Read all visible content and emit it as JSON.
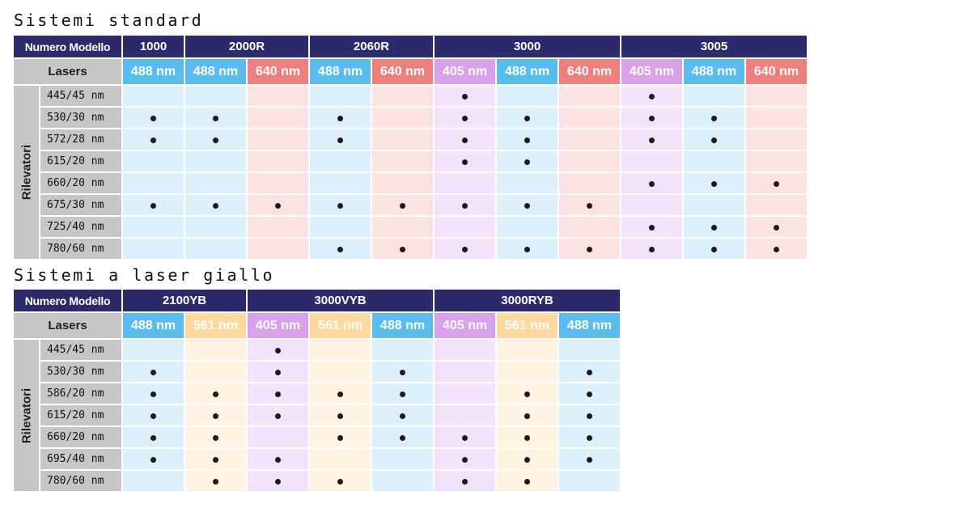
{
  "tables": [
    {
      "title": "Sistemi standard",
      "model_header": "Numero Modello",
      "lasers_label": "Lasers",
      "detectors_label": "Rilevatori",
      "models": [
        {
          "name": "1000",
          "lasers": [
            {
              "wavelength": "488 nm",
              "color": "blue"
            }
          ]
        },
        {
          "name": "2000R",
          "lasers": [
            {
              "wavelength": "488 nm",
              "color": "blue"
            },
            {
              "wavelength": "640 nm",
              "color": "red"
            }
          ]
        },
        {
          "name": "2060R",
          "lasers": [
            {
              "wavelength": "488 nm",
              "color": "blue"
            },
            {
              "wavelength": "640 nm",
              "color": "red"
            }
          ]
        },
        {
          "name": "3000",
          "lasers": [
            {
              "wavelength": "405 nm",
              "color": "violet"
            },
            {
              "wavelength": "488 nm",
              "color": "blue"
            },
            {
              "wavelength": "640 nm",
              "color": "red"
            }
          ]
        },
        {
          "name": "3005",
          "lasers": [
            {
              "wavelength": "405 nm",
              "color": "violet"
            },
            {
              "wavelength": "488 nm",
              "color": "blue"
            },
            {
              "wavelength": "640 nm",
              "color": "red"
            }
          ]
        }
      ],
      "rows": [
        {
          "detector": "445/45 nm",
          "marks": [
            0,
            0,
            0,
            0,
            0,
            1,
            0,
            0,
            1,
            0,
            0
          ]
        },
        {
          "detector": "530/30 nm",
          "marks": [
            1,
            1,
            0,
            1,
            0,
            1,
            1,
            0,
            1,
            1,
            0
          ]
        },
        {
          "detector": "572/28 nm",
          "marks": [
            1,
            1,
            0,
            1,
            0,
            1,
            1,
            0,
            1,
            1,
            0
          ]
        },
        {
          "detector": "615/20 nm",
          "marks": [
            0,
            0,
            0,
            0,
            0,
            1,
            1,
            0,
            0,
            0,
            0
          ]
        },
        {
          "detector": "660/20 nm",
          "marks": [
            0,
            0,
            0,
            0,
            0,
            0,
            0,
            0,
            1,
            1,
            1
          ]
        },
        {
          "detector": "675/30 nm",
          "marks": [
            1,
            1,
            1,
            1,
            1,
            1,
            1,
            1,
            0,
            0,
            0
          ]
        },
        {
          "detector": "725/40 nm",
          "marks": [
            0,
            0,
            0,
            0,
            0,
            0,
            0,
            0,
            1,
            1,
            1
          ]
        },
        {
          "detector": "780/60 nm",
          "marks": [
            0,
            0,
            0,
            1,
            1,
            1,
            1,
            1,
            1,
            1,
            1
          ]
        }
      ]
    },
    {
      "title": "Sistemi a laser giallo",
      "model_header": "Numero Modello",
      "lasers_label": "Lasers",
      "detectors_label": "Rilevatori",
      "models": [
        {
          "name": "2100YB",
          "lasers": [
            {
              "wavelength": "488 nm",
              "color": "blue"
            },
            {
              "wavelength": "561 nm",
              "color": "yellow"
            }
          ]
        },
        {
          "name": "3000VYB",
          "lasers": [
            {
              "wavelength": "405 nm",
              "color": "violet"
            },
            {
              "wavelength": "561 nm",
              "color": "yellow"
            },
            {
              "wavelength": "488 nm",
              "color": "blue"
            }
          ]
        },
        {
          "name": "3000RYB",
          "lasers": [
            {
              "wavelength": "405 nm",
              "color": "violet"
            },
            {
              "wavelength": "561 nm",
              "color": "yellow"
            },
            {
              "wavelength": "488 nm",
              "color": "blue"
            }
          ]
        }
      ],
      "rows": [
        {
          "detector": "445/45 nm",
          "marks": [
            0,
            0,
            1,
            0,
            0,
            0,
            0,
            0
          ]
        },
        {
          "detector": "530/30 nm",
          "marks": [
            1,
            0,
            1,
            0,
            1,
            0,
            0,
            1
          ]
        },
        {
          "detector": "586/20 nm",
          "marks": [
            1,
            1,
            1,
            1,
            1,
            0,
            1,
            1
          ]
        },
        {
          "detector": "615/20 nm",
          "marks": [
            1,
            1,
            1,
            1,
            1,
            0,
            1,
            1
          ]
        },
        {
          "detector": "660/20 nm",
          "marks": [
            1,
            1,
            0,
            1,
            1,
            1,
            1,
            1
          ]
        },
        {
          "detector": "695/40 nm",
          "marks": [
            1,
            1,
            1,
            0,
            0,
            1,
            1,
            1
          ]
        },
        {
          "detector": "780/60 nm",
          "marks": [
            0,
            1,
            1,
            1,
            0,
            1,
            1,
            0
          ]
        }
      ]
    }
  ],
  "colors": {
    "header_bg": "#2c2a6b",
    "label_bg": "#c6c6c6",
    "laser_header": {
      "blue": "#5bbcf0",
      "red": "#ee7f7f",
      "violet": "#d9a0ec",
      "yellow": "#fdd9a0"
    },
    "cell_bg": {
      "blue": "#dcf0fb",
      "red": "#fde2e2",
      "violet": "#f3e3fa",
      "yellow": "#fff2e0"
    }
  }
}
